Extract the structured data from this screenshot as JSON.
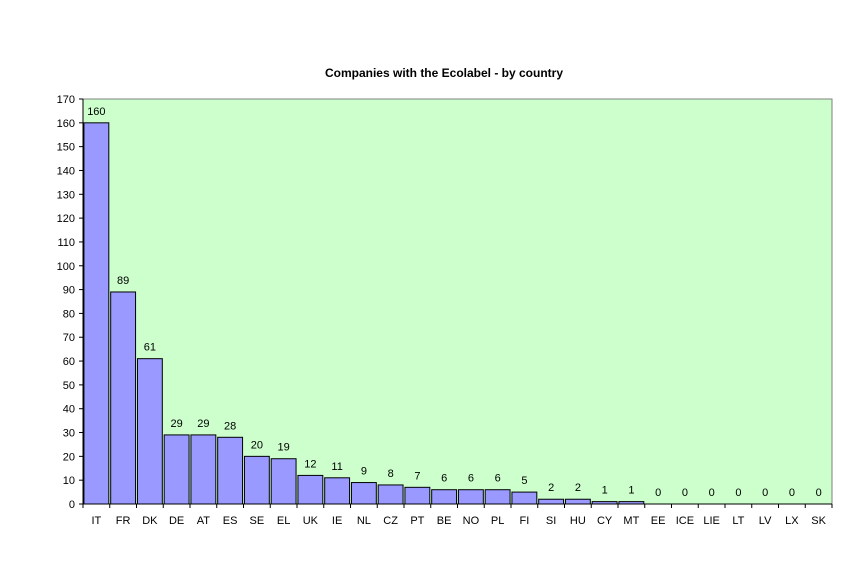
{
  "chart_data": {
    "type": "bar",
    "title": "Companies with the Ecolabel - by country",
    "xlabel": "",
    "ylabel": "",
    "categories": [
      "IT",
      "FR",
      "DK",
      "DE",
      "AT",
      "ES",
      "SE",
      "EL",
      "UK",
      "IE",
      "NL",
      "CZ",
      "PT",
      "BE",
      "NO",
      "PL",
      "FI",
      "SI",
      "HU",
      "CY",
      "MT",
      "EE",
      "ICE",
      "LIE",
      "LT",
      "LV",
      "LX",
      "SK"
    ],
    "values": [
      160,
      89,
      61,
      29,
      29,
      28,
      20,
      19,
      12,
      11,
      9,
      8,
      7,
      6,
      6,
      6,
      5,
      2,
      2,
      1,
      1,
      0,
      0,
      0,
      0,
      0,
      0,
      0
    ],
    "ylim": [
      0,
      170
    ],
    "yticks": [
      0,
      10,
      20,
      30,
      40,
      50,
      60,
      70,
      80,
      90,
      100,
      110,
      120,
      130,
      140,
      150,
      160,
      170
    ],
    "grid": false,
    "data_labels": true,
    "legend": "none",
    "colors": {
      "plot_background": "#ccffcc",
      "bar_fill": "#9999ff",
      "bar_stroke": "#000000",
      "axis": "#000000"
    }
  }
}
